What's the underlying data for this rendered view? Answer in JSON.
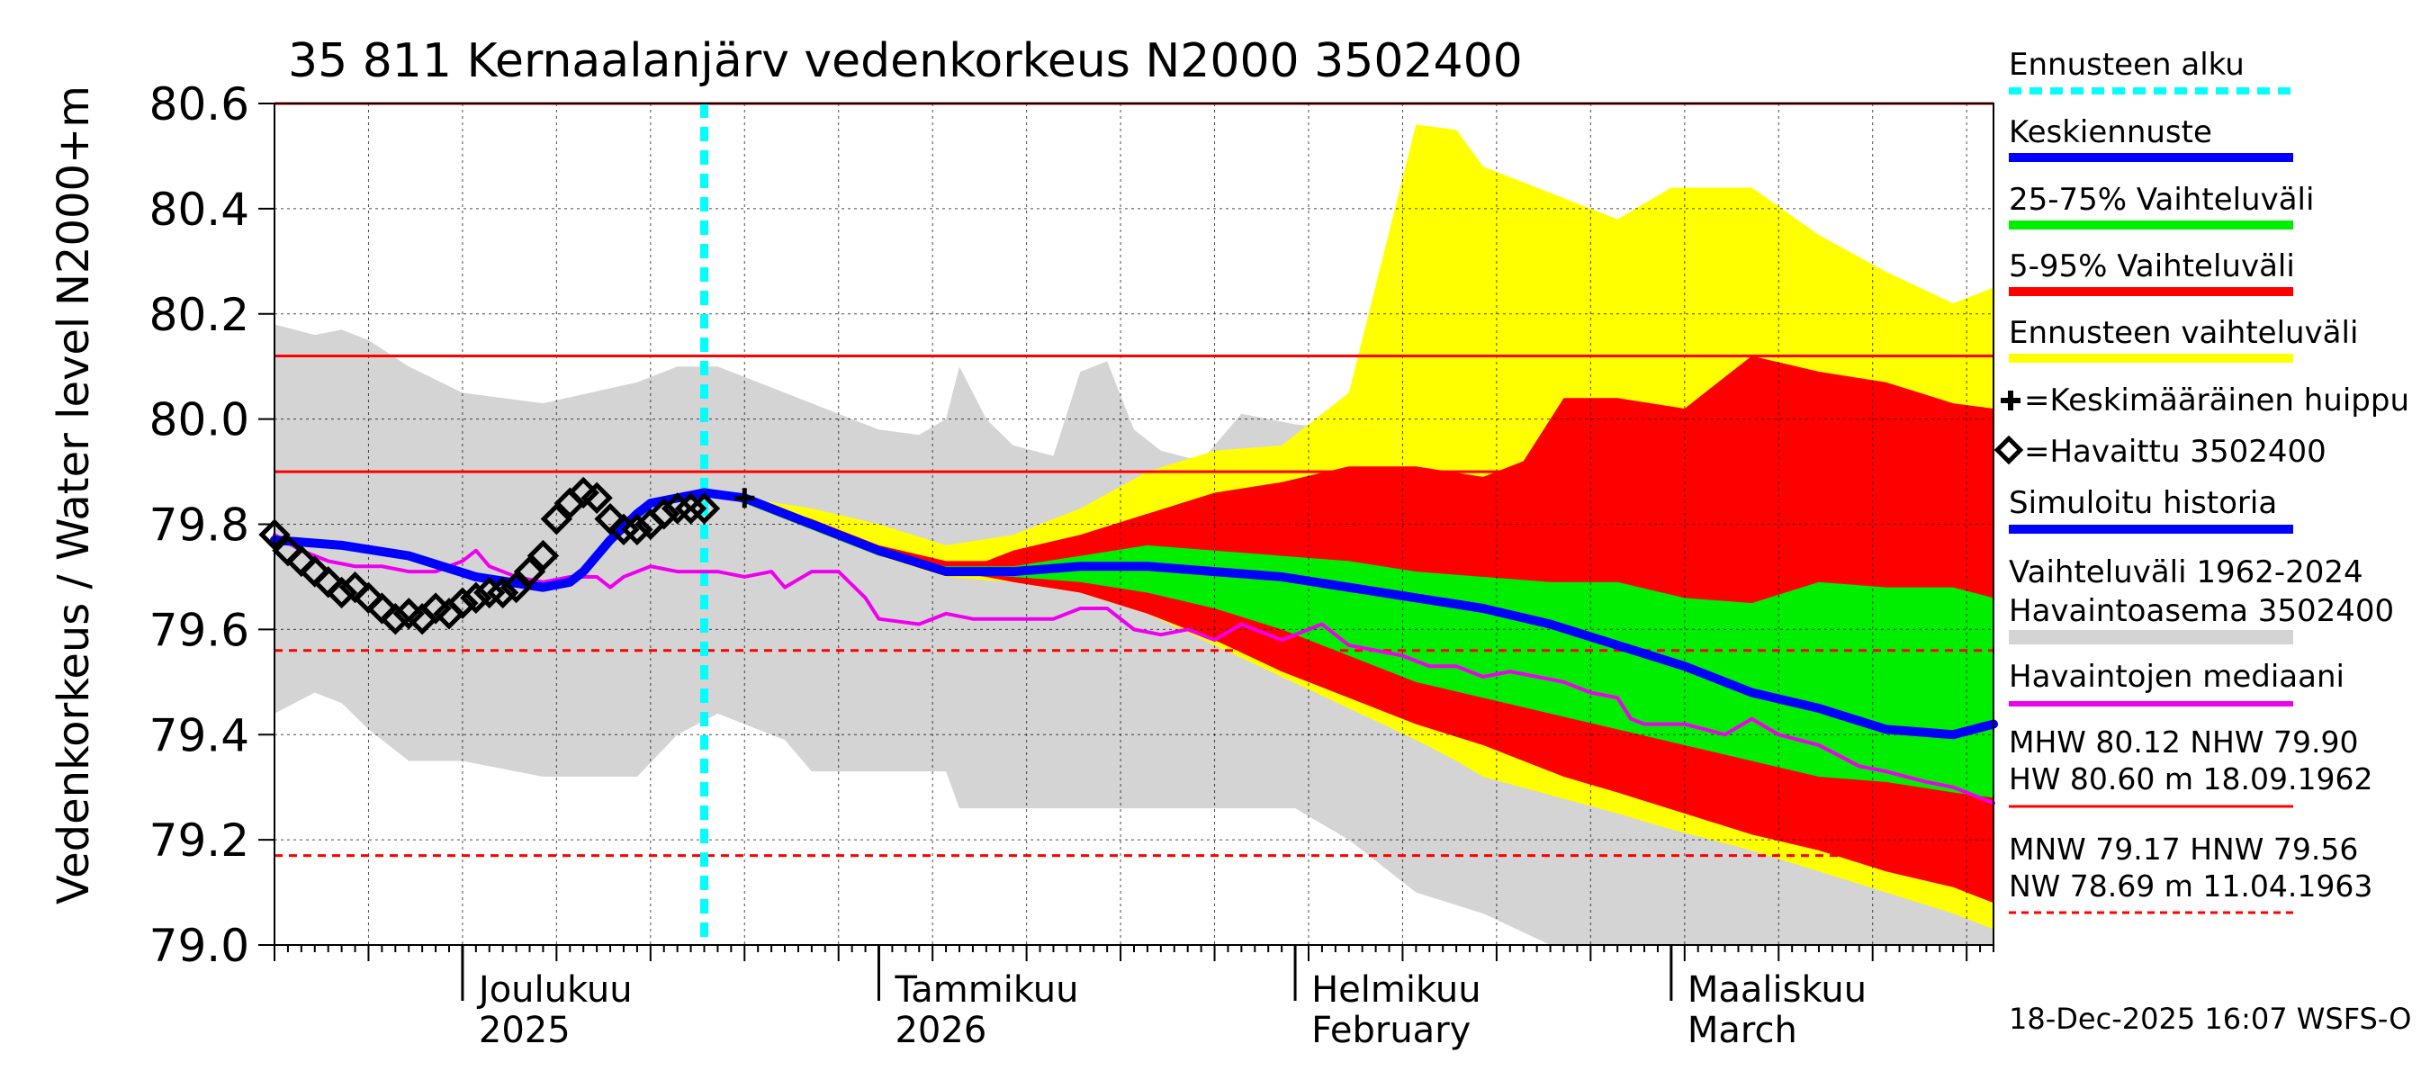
{
  "chart_data": {
    "type": "line",
    "title": "35 811 Kernaalanjärv vedenkorkeus N2000 3502400",
    "ylabel_line1": "Vedenkorkeus / Water level",
    "ylabel_line2": "N2000+m",
    "ylim": [
      79.0,
      80.6
    ],
    "y_ticks": [
      "79.0",
      "79.2",
      "79.4",
      "79.6",
      "79.8",
      "80.0",
      "80.2",
      "80.4",
      "80.6"
    ],
    "x_range_days": [
      0,
      128
    ],
    "x_start_date": "2025-11-17",
    "month_labels": [
      {
        "fi": "Joulukuu",
        "en": "2025",
        "day": 14
      },
      {
        "fi": "Tammikuu",
        "en": "2026",
        "day": 45
      },
      {
        "fi": "Helmikuu",
        "en": "February",
        "day": 76
      },
      {
        "fi": "Maaliskuu",
        "en": "March",
        "day": 104
      }
    ],
    "month_boundaries_days": [
      14,
      45,
      76,
      104
    ],
    "forecast_start_day": 32,
    "reference_lines": {
      "HW": 80.6,
      "MHW": 80.12,
      "NHW": 79.9,
      "HNW": 79.56,
      "MNW": 79.17
    },
    "series": [
      {
        "name": "Vaihteluväli 1962-2024 Havaintoasema 3502400",
        "kind": "band",
        "color": "#d4d4d4",
        "x": [
          0,
          3,
          5,
          7,
          10,
          14,
          20,
          27,
          30,
          33,
          35,
          38,
          40,
          45,
          48,
          50,
          51,
          53,
          55,
          58,
          60,
          62,
          64,
          66,
          69,
          72,
          76,
          80,
          85,
          90,
          95,
          100,
          105,
          110,
          115,
          120,
          125,
          128
        ],
        "upper": [
          80.18,
          80.16,
          80.17,
          80.15,
          80.1,
          80.05,
          80.03,
          80.07,
          80.1,
          80.1,
          80.08,
          80.05,
          80.03,
          79.98,
          79.97,
          80.0,
          80.1,
          80.0,
          79.95,
          79.93,
          80.09,
          80.11,
          79.98,
          79.94,
          79.92,
          80.01,
          79.99,
          79.98,
          79.97,
          79.95,
          79.93,
          79.91,
          79.9,
          79.89,
          79.87,
          79.88,
          79.85,
          79.84
        ],
        "lower": [
          79.44,
          79.48,
          79.46,
          79.41,
          79.35,
          79.35,
          79.32,
          79.32,
          79.4,
          79.44,
          79.42,
          79.39,
          79.33,
          79.33,
          79.33,
          79.33,
          79.26,
          79.26,
          79.26,
          79.26,
          79.26,
          79.26,
          79.26,
          79.26,
          79.26,
          79.26,
          79.26,
          79.2,
          79.1,
          79.06,
          79.0,
          79.0,
          79.0,
          79.0,
          79.0,
          79.0,
          79.0,
          79.0
        ]
      },
      {
        "name": "Ennusteen vaihteluväli",
        "kind": "band",
        "color": "#ffff00",
        "x": [
          32,
          35,
          40,
          45,
          50,
          55,
          60,
          65,
          70,
          75,
          80,
          85,
          88,
          90,
          100,
          104,
          110,
          115,
          120,
          125,
          128
        ],
        "upper": [
          79.86,
          79.85,
          79.83,
          79.8,
          79.76,
          79.78,
          79.83,
          79.9,
          79.94,
          79.95,
          80.05,
          80.56,
          80.55,
          80.48,
          80.38,
          80.44,
          80.44,
          80.35,
          80.28,
          80.22,
          80.25
        ],
        "lower": [
          79.86,
          79.84,
          79.79,
          79.74,
          79.7,
          79.69,
          79.67,
          79.63,
          79.57,
          79.51,
          79.45,
          79.39,
          79.35,
          79.32,
          79.25,
          79.22,
          79.18,
          79.14,
          79.1,
          79.06,
          79.03
        ]
      },
      {
        "name": "5-95% Vaihteluväli",
        "kind": "band",
        "color": "#ff0000",
        "x": [
          32,
          35,
          40,
          45,
          50,
          53,
          55,
          60,
          65,
          70,
          75,
          80,
          85,
          90,
          93,
          96,
          100,
          105,
          110,
          115,
          120,
          125,
          128
        ],
        "upper": [
          79.86,
          79.85,
          79.81,
          79.76,
          79.73,
          79.73,
          79.75,
          79.78,
          79.82,
          79.86,
          79.88,
          79.91,
          79.91,
          79.89,
          79.92,
          80.04,
          80.04,
          80.02,
          80.12,
          80.09,
          80.07,
          80.03,
          80.02
        ],
        "lower": [
          79.86,
          79.84,
          79.79,
          79.74,
          79.71,
          79.7,
          79.69,
          79.67,
          79.63,
          79.58,
          79.52,
          79.47,
          79.42,
          79.38,
          79.35,
          79.32,
          79.29,
          79.25,
          79.21,
          79.18,
          79.14,
          79.11,
          79.08
        ]
      },
      {
        "name": "25-75% Vaihteluväli",
        "kind": "band",
        "color": "#00ee00",
        "x": [
          32,
          35,
          40,
          45,
          50,
          55,
          60,
          65,
          70,
          75,
          80,
          85,
          90,
          95,
          100,
          105,
          110,
          115,
          120,
          125,
          128
        ],
        "upper": [
          79.86,
          79.85,
          79.8,
          79.75,
          79.72,
          79.72,
          79.74,
          79.76,
          79.75,
          79.74,
          79.73,
          79.71,
          79.7,
          79.69,
          79.69,
          79.66,
          79.65,
          79.69,
          79.68,
          79.68,
          79.66
        ],
        "lower": [
          79.86,
          79.84,
          79.79,
          79.74,
          79.71,
          79.7,
          79.69,
          79.67,
          79.64,
          79.6,
          79.55,
          79.5,
          79.47,
          79.44,
          79.41,
          79.38,
          79.35,
          79.32,
          79.31,
          79.29,
          79.28
        ]
      },
      {
        "name": "Havaintojen mediaani",
        "kind": "line",
        "color": "#ee00ee",
        "x": [
          0,
          2,
          4,
          6,
          8,
          10,
          12,
          14,
          15,
          16,
          18,
          20,
          22,
          24,
          25,
          26,
          28,
          30,
          33,
          35,
          37,
          38,
          40,
          42,
          44,
          45,
          48,
          50,
          52,
          55,
          58,
          60,
          62,
          64,
          66,
          68,
          70,
          72,
          75,
          78,
          80,
          82,
          84,
          86,
          88,
          90,
          92,
          94,
          96,
          98,
          100,
          101,
          102,
          103,
          105,
          108,
          110,
          112,
          115,
          118,
          120,
          123,
          125,
          128
        ],
        "y": [
          79.78,
          79.75,
          79.73,
          79.72,
          79.72,
          79.71,
          79.71,
          79.73,
          79.75,
          79.72,
          79.7,
          79.69,
          79.7,
          79.7,
          79.68,
          79.7,
          79.72,
          79.71,
          79.71,
          79.7,
          79.71,
          79.68,
          79.71,
          79.71,
          79.66,
          79.62,
          79.61,
          79.63,
          79.62,
          79.62,
          79.62,
          79.64,
          79.64,
          79.6,
          79.59,
          79.6,
          79.58,
          79.61,
          79.58,
          79.61,
          79.57,
          79.56,
          79.55,
          79.53,
          79.53,
          79.51,
          79.52,
          79.51,
          79.5,
          79.48,
          79.47,
          79.43,
          79.42,
          79.42,
          79.42,
          79.4,
          79.43,
          79.4,
          79.38,
          79.34,
          79.33,
          79.31,
          79.3,
          79.27
        ]
      },
      {
        "name": "Simuloitu historia",
        "kind": "line",
        "color": "#0000ff",
        "x": [
          0,
          5,
          10,
          15,
          20,
          22,
          23,
          25,
          27,
          28,
          30,
          32
        ],
        "y": [
          79.77,
          79.76,
          79.74,
          79.7,
          79.68,
          79.69,
          79.71,
          79.77,
          79.82,
          79.84,
          79.85,
          79.86
        ]
      },
      {
        "name": "Keskiennuste",
        "kind": "line",
        "color": "#0000ff",
        "x": [
          32,
          35,
          40,
          45,
          50,
          55,
          60,
          65,
          70,
          75,
          80,
          85,
          90,
          95,
          100,
          105,
          110,
          115,
          120,
          125,
          128
        ],
        "y": [
          79.86,
          79.85,
          79.8,
          79.75,
          79.71,
          79.71,
          79.72,
          79.72,
          79.71,
          79.7,
          79.68,
          79.66,
          79.64,
          79.61,
          79.57,
          79.53,
          79.48,
          79.45,
          79.41,
          79.4,
          79.42
        ]
      },
      {
        "name": "Havaittu 3502400",
        "kind": "markers",
        "color": "#000000",
        "x": [
          0,
          1,
          2,
          3,
          4,
          5,
          6,
          7,
          8,
          9,
          10,
          11,
          12,
          13,
          14,
          15,
          16,
          17,
          18,
          19,
          20,
          21,
          22,
          23,
          24,
          25,
          26,
          27,
          28,
          29,
          30,
          31,
          32
        ],
        "y": [
          79.78,
          79.75,
          79.73,
          79.71,
          79.69,
          79.67,
          79.68,
          79.66,
          79.64,
          79.62,
          79.63,
          79.62,
          79.64,
          79.63,
          79.65,
          79.66,
          79.67,
          79.67,
          79.68,
          79.71,
          79.74,
          79.81,
          79.84,
          79.86,
          79.85,
          79.81,
          79.79,
          79.79,
          79.8,
          79.82,
          79.83,
          79.83,
          79.83
        ]
      },
      {
        "name": "Keskimääräinen huippu",
        "kind": "cross",
        "color": "#000000",
        "x": [
          35
        ],
        "y": [
          79.85
        ]
      }
    ],
    "legend": {
      "placement": "right",
      "ennusteen_alku": "Ennusteen alku",
      "keskiennuste": "Keskiennuste",
      "range_25_75": "25-75% Vaihteluväli",
      "range_5_95": "5-95% Vaihteluväli",
      "ennusteen_vaihteluvali": "Ennusteen vaihteluväli",
      "keskimaarainen_huippu": "=Keskimääräinen huippu",
      "havaittu": "=Havaittu 3502400",
      "simuloitu": "Simuloitu historia",
      "vaihteluvali_line1": "Vaihteluväli 1962-2024",
      "vaihteluvali_line2": "Havaintoasema 3502400",
      "mediaani": "Havaintojen mediaani",
      "mhw_line": "MHW  80.12 NHW  79.90",
      "hw_line": "HW  80.60 m 18.09.1962",
      "mnw_line": "MNW  79.17 HNW  79.56",
      "nw_line": "NW  78.69 m 11.04.1963"
    },
    "footer": "18-Dec-2025 16:07 WSFS-O",
    "colors": {
      "forecast_start": "#00ffff",
      "ref_line": "#ff0000",
      "history_band": "#d4d4d4",
      "yellow": "#ffff00",
      "red": "#ff0000",
      "green": "#00ee00",
      "blue": "#0000ff",
      "median": "#ee00ee"
    }
  }
}
